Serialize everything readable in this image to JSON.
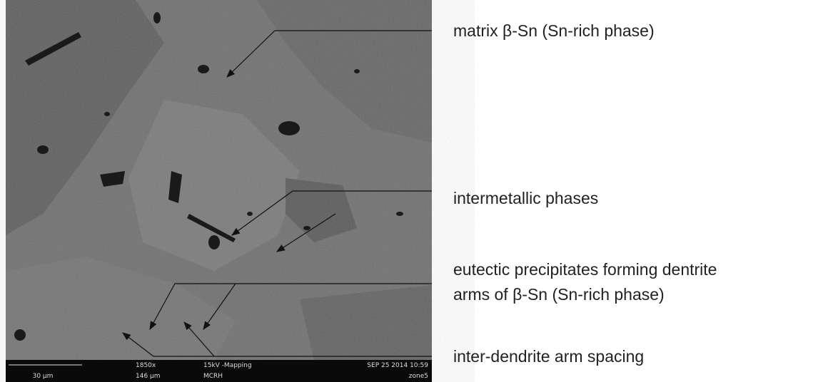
{
  "annotations": [
    {
      "label": "matrix β-Sn (Sn-rich phase)"
    },
    {
      "label": "intermetallic phases"
    },
    {
      "label": [
        "eutectic precipitates forming dentrite",
        "arms of β-Sn (Sn-rich phase)"
      ]
    },
    {
      "label": "inter-dendrite arm spacing"
    }
  ],
  "info_bar": {
    "scale": "30 µm",
    "magnification": "1850x",
    "field_width": "146 µm",
    "mode": "15kV -Mapping",
    "lab": "MCRH",
    "date": "SEP 25 2014 10:59",
    "zone": "zone5"
  }
}
